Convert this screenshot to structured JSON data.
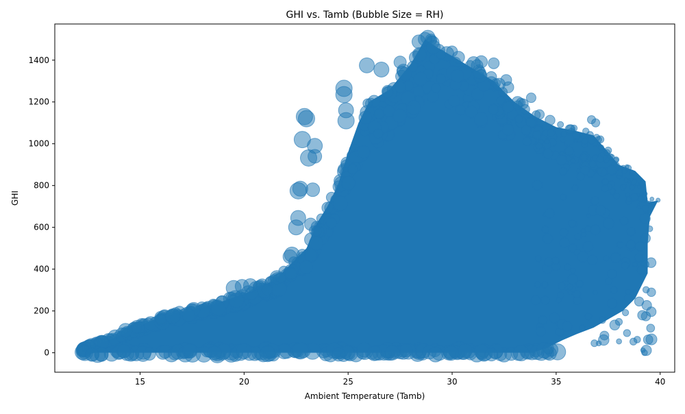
{
  "chart_data": {
    "type": "scatter",
    "title": "GHI vs. Tamb (Bubble Size = RH)",
    "xlabel": "Ambient Temperature (Tamb)",
    "ylabel": "GHI",
    "xlim": [
      10.9,
      40.7
    ],
    "ylim": [
      -93,
      1573
    ],
    "xticks": [
      15,
      20,
      25,
      30,
      35,
      40
    ],
    "yticks": [
      0,
      200,
      400,
      600,
      800,
      1000,
      1200,
      1400
    ],
    "grid": false,
    "marker_color": "#1f77b4",
    "marker_alpha": 0.5,
    "size_encoding": "RH",
    "point_cloud_envelope": {
      "upper": [
        [
          12.2,
          10
        ],
        [
          12.6,
          35
        ],
        [
          13.5,
          60
        ],
        [
          14.5,
          105
        ],
        [
          15.5,
          150
        ],
        [
          16.5,
          185
        ],
        [
          17.5,
          205
        ],
        [
          18.5,
          230
        ],
        [
          19.5,
          265
        ],
        [
          20.5,
          300
        ],
        [
          21.5,
          350
        ],
        [
          22,
          400
        ],
        [
          22.5,
          450
        ],
        [
          23,
          500
        ],
        [
          23.5,
          620
        ],
        [
          24,
          700
        ],
        [
          24.5,
          800
        ],
        [
          25,
          960
        ],
        [
          25.5,
          1100
        ],
        [
          26,
          1200
        ],
        [
          27,
          1260
        ],
        [
          28,
          1380
        ],
        [
          28.7,
          1500
        ],
        [
          29.3,
          1460
        ],
        [
          30,
          1420
        ],
        [
          31,
          1360
        ],
        [
          32,
          1300
        ],
        [
          33,
          1200
        ],
        [
          34,
          1130
        ],
        [
          35,
          1080
        ],
        [
          36,
          1060
        ],
        [
          36.8,
          1040
        ],
        [
          37.5,
          960
        ],
        [
          38,
          900
        ],
        [
          38.8,
          870
        ],
        [
          39.3,
          820
        ],
        [
          39.4,
          720
        ],
        [
          39.9,
          728
        ],
        [
          39.5,
          650
        ],
        [
          39.4,
          520
        ],
        [
          39.4,
          380
        ],
        [
          38.8,
          260
        ],
        [
          38.2,
          200
        ],
        [
          37.5,
          160
        ],
        [
          36.8,
          120
        ],
        [
          36,
          90
        ],
        [
          35.3,
          60
        ],
        [
          34.5,
          20
        ],
        [
          34,
          5
        ]
      ],
      "lower_y": 0
    },
    "outliers": [
      {
        "x": 22.9,
        "y": 1130,
        "rh": 1.2
      },
      {
        "x": 23.0,
        "y": 1120,
        "rh": 1.2
      },
      {
        "x": 22.8,
        "y": 1020,
        "rh": 1.2
      },
      {
        "x": 23.4,
        "y": 990,
        "rh": 1.1
      },
      {
        "x": 23.1,
        "y": 932,
        "rh": 1.2
      },
      {
        "x": 23.4,
        "y": 940,
        "rh": 1.0
      },
      {
        "x": 22.7,
        "y": 785,
        "rh": 1.1
      },
      {
        "x": 22.6,
        "y": 775,
        "rh": 1.2
      },
      {
        "x": 23.3,
        "y": 780,
        "rh": 1.0
      },
      {
        "x": 22.6,
        "y": 645,
        "rh": 1.1
      },
      {
        "x": 22.5,
        "y": 600,
        "rh": 1.1
      },
      {
        "x": 23.2,
        "y": 615,
        "rh": 0.9
      },
      {
        "x": 22.3,
        "y": 470,
        "rh": 1.1
      },
      {
        "x": 22.2,
        "y": 460,
        "rh": 1.0
      },
      {
        "x": 19.5,
        "y": 310,
        "rh": 1.1
      },
      {
        "x": 19.9,
        "y": 318,
        "rh": 1.0
      },
      {
        "x": 20.3,
        "y": 322,
        "rh": 1.0
      },
      {
        "x": 14.3,
        "y": 108,
        "rh": 1.0
      },
      {
        "x": 24.8,
        "y": 1265,
        "rh": 1.2
      },
      {
        "x": 24.8,
        "y": 1235,
        "rh": 1.2
      },
      {
        "x": 24.9,
        "y": 1160,
        "rh": 1.1
      },
      {
        "x": 24.9,
        "y": 1110,
        "rh": 1.2
      },
      {
        "x": 25.9,
        "y": 1375,
        "rh": 1.1
      },
      {
        "x": 26.6,
        "y": 1355,
        "rh": 1.1
      },
      {
        "x": 28.7,
        "y": 1500,
        "rh": 1.0
      },
      {
        "x": 28.4,
        "y": 1488,
        "rh": 1.0
      },
      {
        "x": 29.1,
        "y": 1462,
        "rh": 1.0
      },
      {
        "x": 27.5,
        "y": 1390,
        "rh": 0.9
      },
      {
        "x": 31.4,
        "y": 1392,
        "rh": 0.9
      },
      {
        "x": 32.0,
        "y": 1385,
        "rh": 0.8
      },
      {
        "x": 32.6,
        "y": 1305,
        "rh": 0.8
      },
      {
        "x": 32.7,
        "y": 1270,
        "rh": 0.8
      },
      {
        "x": 33.8,
        "y": 1220,
        "rh": 0.7
      },
      {
        "x": 33.5,
        "y": 1165,
        "rh": 0.7
      },
      {
        "x": 34.2,
        "y": 1140,
        "rh": 0.7
      },
      {
        "x": 36.7,
        "y": 1115,
        "rh": 0.6
      },
      {
        "x": 36.9,
        "y": 1100,
        "rh": 0.6
      },
      {
        "x": 37.5,
        "y": 968,
        "rh": 0.5
      },
      {
        "x": 39.9,
        "y": 730,
        "rh": 0.3
      }
    ],
    "tick_color": "#000000"
  }
}
